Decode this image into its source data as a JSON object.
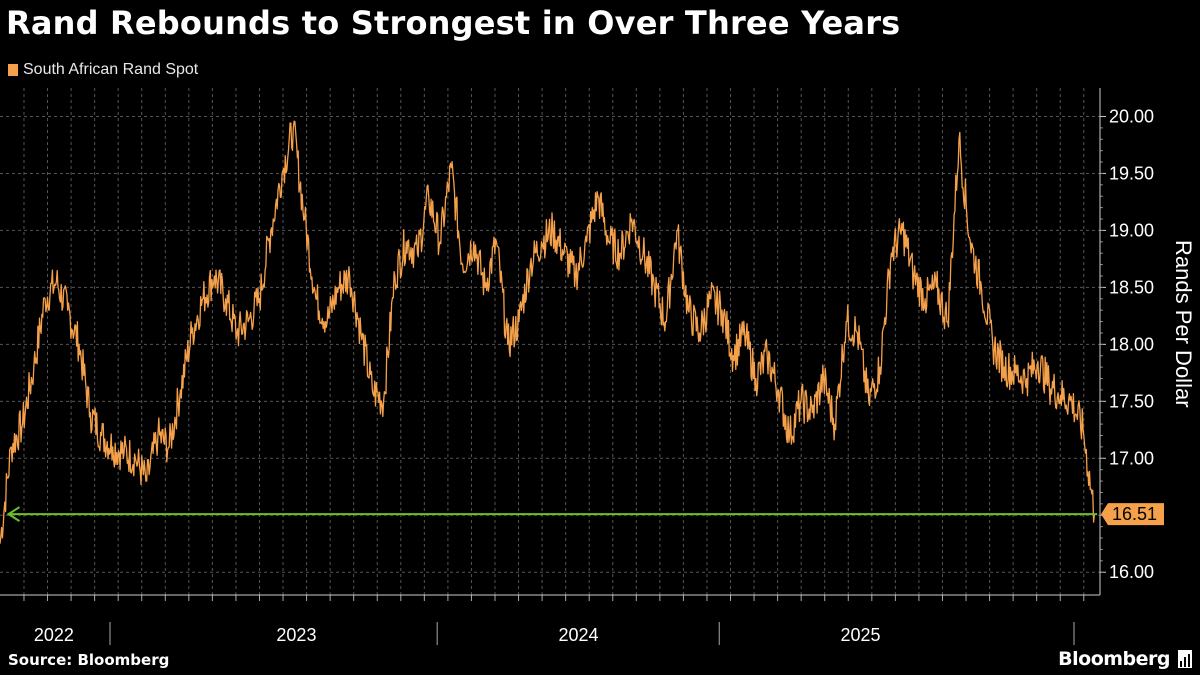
{
  "title": "Rand Rebounds to Strongest in Over Three Years",
  "source": "Source: Bloomberg",
  "brand": "Bloomberg",
  "colors": {
    "line": "#f5a04a",
    "arrow": "#6dbf2a",
    "grid": "#555555",
    "label_bg": "#f5a04a"
  },
  "chart_data": {
    "type": "line",
    "title": "Rand Rebounds to Strongest in Over Three Years",
    "ylabel": "Rands Per Dollar",
    "xlabel": "",
    "ylim": [
      15.8,
      20.25
    ],
    "yticks": [
      16.0,
      16.5,
      17.0,
      17.5,
      18.0,
      18.5,
      19.0,
      19.5,
      20.0
    ],
    "ytick_labels": [
      "16.00",
      "",
      "17.00",
      "17.50",
      "18.00",
      "18.50",
      "19.00",
      "19.50",
      "20.00"
    ],
    "xlim": [
      2021.95,
      2025.85
    ],
    "year_labels": [
      {
        "label": "2022",
        "x": 2022.07
      },
      {
        "label": "2023",
        "x": 2022.93
      },
      {
        "label": "2024",
        "x": 2023.93
      },
      {
        "label": "2025",
        "x": 2024.93
      }
    ],
    "year_boundaries": [
      2022.34,
      2023.5,
      2024.5
    ],
    "month_ticks_start": 2021.95,
    "month_ticks_end": 2025.85,
    "series": [
      {
        "name": "South African Rand Spot",
        "x": [
          2021.95,
          2021.99,
          2022.03,
          2022.07,
          2022.11,
          2022.15,
          2022.19,
          2022.23,
          2022.27,
          2022.31,
          2022.35,
          2022.39,
          2022.43,
          2022.47,
          2022.51,
          2022.55,
          2022.59,
          2022.63,
          2022.67,
          2022.71,
          2022.75,
          2022.79,
          2022.83,
          2022.87,
          2022.91,
          2022.95,
          2022.99,
          2023.03,
          2023.07,
          2023.11,
          2023.15,
          2023.19,
          2023.23,
          2023.27,
          2023.31,
          2023.35,
          2023.39,
          2023.43,
          2023.47,
          2023.51,
          2023.55,
          2023.59,
          2023.63,
          2023.67,
          2023.71,
          2023.75,
          2023.79,
          2023.83,
          2023.87,
          2023.91,
          2023.95,
          2023.99,
          2024.03,
          2024.07,
          2024.11,
          2024.15,
          2024.19,
          2024.23,
          2024.27,
          2024.31,
          2024.35,
          2024.39,
          2024.43,
          2024.47,
          2024.51,
          2024.55,
          2024.59,
          2024.63,
          2024.67,
          2024.71,
          2024.75,
          2024.79,
          2024.83,
          2024.87,
          2024.91,
          2024.95,
          2024.99,
          2025.03,
          2025.07,
          2025.11,
          2025.15,
          2025.19,
          2025.23,
          2025.27
        ],
        "values": [
          16.25,
          17.1,
          17.3,
          17.8,
          18.4,
          18.55,
          18.3,
          18.0,
          17.4,
          17.2,
          17.1,
          17.05,
          17.0,
          16.8,
          17.2,
          17.1,
          17.6,
          18.1,
          18.4,
          18.6,
          18.4,
          18.1,
          18.2,
          18.4,
          19.0,
          19.5,
          19.9,
          19.1,
          18.4,
          18.2,
          18.5,
          18.6,
          18.1,
          17.6,
          17.5,
          18.6,
          18.9,
          18.8,
          19.3,
          18.9,
          19.55,
          18.7,
          18.9,
          18.5,
          18.9,
          18.0,
          18.2,
          18.7,
          18.9,
          19.0,
          18.8,
          18.6,
          18.9,
          19.3,
          18.9,
          18.8,
          19.1,
          18.8,
          18.5,
          18.2,
          19.0,
          18.3,
          18.1,
          18.4,
          18.3,
          17.9,
          18.1,
          17.7,
          17.9,
          17.6,
          17.2,
          17.5,
          17.4,
          17.7,
          17.3,
          18.2,
          18.1,
          17.5,
          17.8,
          18.8,
          19.0,
          18.6,
          18.4,
          18.5
        ],
        "continued_x": [
          2025.31,
          2025.35,
          2025.39,
          2025.43,
          2025.47,
          2025.51,
          2025.55,
          2025.59,
          2025.63,
          2025.67,
          2025.71,
          2025.75,
          2025.79,
          2025.83
        ],
        "continued_values": [
          18.2,
          19.8,
          18.9,
          18.5,
          18.0,
          17.8,
          17.75,
          17.7,
          17.85,
          17.65,
          17.55,
          17.5,
          17.25,
          16.51
        ]
      }
    ],
    "last_value": 16.51,
    "last_value_label": "16.51",
    "annotation": {
      "type": "horizontal-arrow",
      "y": 16.51,
      "from_x": 2025.84,
      "to_x": 2021.98,
      "color": "green"
    }
  }
}
